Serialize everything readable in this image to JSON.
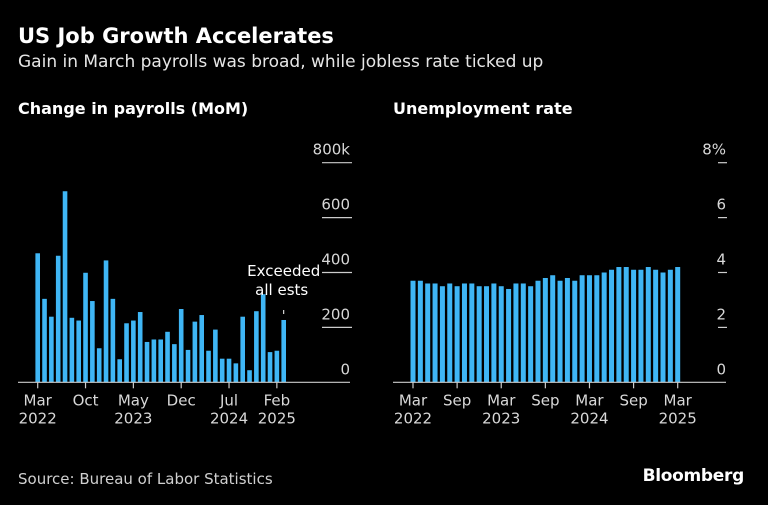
{
  "title": "US Job Growth Accelerates",
  "subtitle": "Gain in March payrolls was broad, while jobless rate ticked up",
  "source": "Source: Bureau of Labor Statistics",
  "logo": "Bloomberg",
  "colors": {
    "bar": "#3fb6f5",
    "background": "#000000",
    "axis": "#cccccc"
  },
  "chart_data": [
    {
      "type": "bar",
      "title": "Change in payrolls (MoM)",
      "ylim": [
        0,
        800
      ],
      "yticks": [
        {
          "v": 0,
          "label": "0"
        },
        {
          "v": 200,
          "label": "200"
        },
        {
          "v": 400,
          "label": "400"
        },
        {
          "v": 600,
          "label": "600"
        },
        {
          "v": 800,
          "label": "800k"
        }
      ],
      "xticks": [
        {
          "i": 0,
          "l1": "Mar",
          "l2": "2022"
        },
        {
          "i": 7,
          "l1": "Oct",
          "l2": ""
        },
        {
          "i": 14,
          "l1": "May",
          "l2": "2023"
        },
        {
          "i": 21,
          "l1": "Dec",
          "l2": ""
        },
        {
          "i": 28,
          "l1": "Jul",
          "l2": "2024"
        },
        {
          "i": 35,
          "l1": "Feb",
          "l2": "2025"
        }
      ],
      "period": "Mar 2022 – Mar 2025 (monthly)",
      "values": [
        470,
        304,
        239,
        461,
        696,
        235,
        225,
        399,
        296,
        124,
        444,
        304,
        84,
        215,
        225,
        256,
        147,
        156,
        156,
        184,
        139,
        267,
        118,
        221,
        245,
        115,
        192,
        86,
        86,
        69,
        239,
        44,
        259,
        321,
        110,
        115,
        227
      ],
      "annotation": {
        "line1": "Exceeded",
        "line2": "all ests",
        "index": 36
      },
      "grid": false
    },
    {
      "type": "bar",
      "title": "Unemployment rate",
      "ylim": [
        0,
        8
      ],
      "yticks": [
        {
          "v": 0,
          "label": "0"
        },
        {
          "v": 2,
          "label": "2"
        },
        {
          "v": 4,
          "label": "4"
        },
        {
          "v": 6,
          "label": "6"
        },
        {
          "v": 8,
          "label": "8%"
        }
      ],
      "xticks": [
        {
          "i": 0,
          "l1": "Mar",
          "l2": "2022"
        },
        {
          "i": 6,
          "l1": "Sep",
          "l2": ""
        },
        {
          "i": 12,
          "l1": "Mar",
          "l2": "2023"
        },
        {
          "i": 18,
          "l1": "Sep",
          "l2": ""
        },
        {
          "i": 24,
          "l1": "Mar",
          "l2": "2024"
        },
        {
          "i": 30,
          "l1": "Sep",
          "l2": ""
        },
        {
          "i": 36,
          "l1": "Mar",
          "l2": "2025"
        }
      ],
      "period": "Mar 2022 – Mar 2025 (monthly)",
      "values": [
        3.7,
        3.7,
        3.6,
        3.6,
        3.5,
        3.6,
        3.5,
        3.6,
        3.6,
        3.5,
        3.5,
        3.6,
        3.5,
        3.4,
        3.6,
        3.6,
        3.5,
        3.7,
        3.8,
        3.9,
        3.7,
        3.8,
        3.7,
        3.9,
        3.9,
        3.9,
        4.0,
        4.1,
        4.2,
        4.2,
        4.1,
        4.1,
        4.2,
        4.1,
        4.0,
        4.1,
        4.2
      ],
      "grid": false
    }
  ]
}
